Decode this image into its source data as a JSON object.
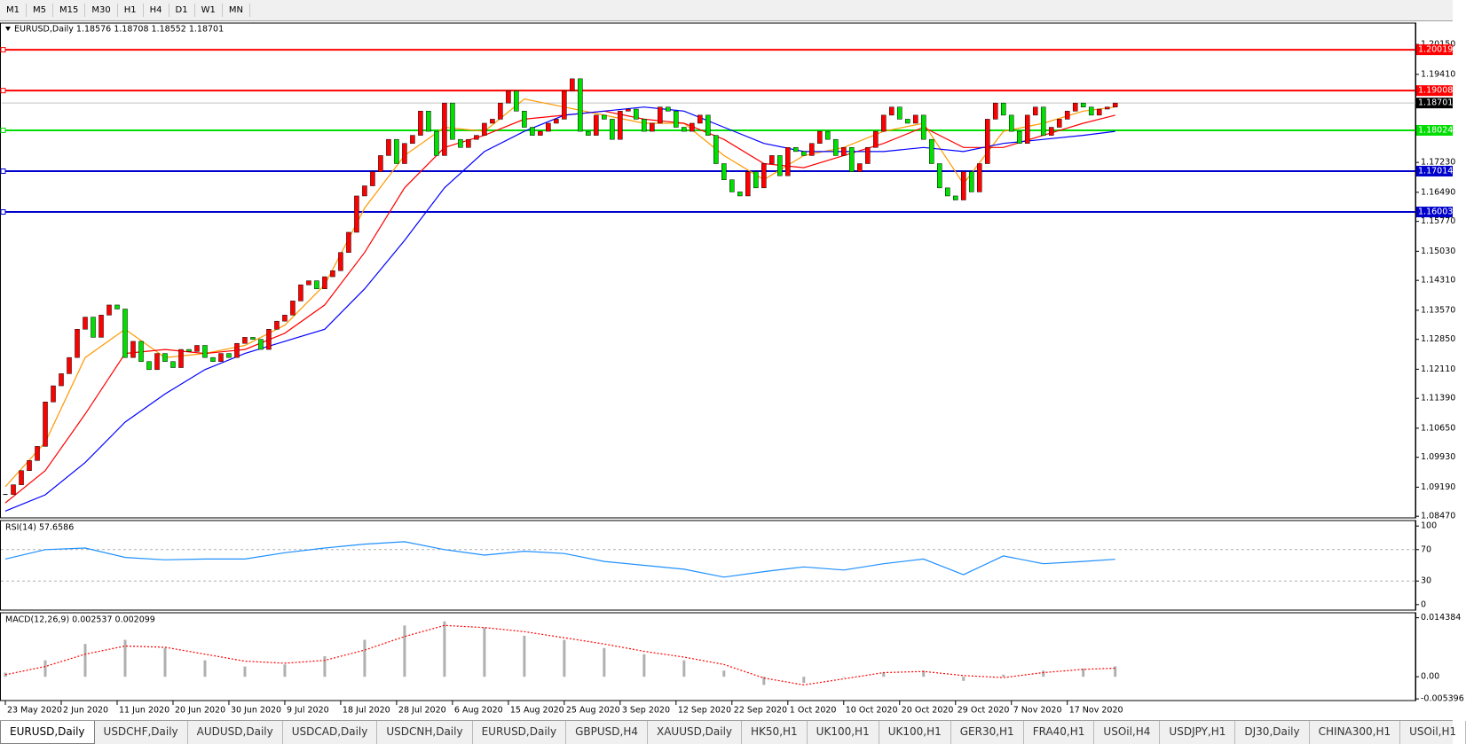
{
  "toolbar": [
    "M1",
    "M5",
    "M15",
    "M30",
    "H1",
    "H4",
    "D1",
    "W1",
    "MN"
  ],
  "chart_data": [
    {
      "type": "candlestick",
      "title": "EURUSD,Daily  1.18576 1.18708 1.18552 1.18701",
      "up_color": "#ff0000",
      "down_color": "#00e000",
      "closes": [
        1.0901,
        1.0925,
        1.096,
        1.0985,
        1.102,
        1.113,
        1.117,
        1.12,
        1.124,
        1.131,
        1.134,
        1.129,
        1.1345,
        1.137,
        1.136,
        1.124,
        1.128,
        1.123,
        1.121,
        1.125,
        1.123,
        1.1215,
        1.126,
        1.1255,
        1.127,
        1.124,
        1.123,
        1.125,
        1.124,
        1.1275,
        1.129,
        1.1285,
        1.126,
        1.131,
        1.133,
        1.1345,
        1.138,
        1.142,
        1.143,
        1.141,
        1.144,
        1.1455,
        1.15,
        1.155,
        1.164,
        1.1665,
        1.17,
        1.174,
        1.178,
        1.172,
        1.177,
        1.179,
        1.185,
        1.18,
        1.174,
        1.187,
        1.178,
        1.176,
        1.178,
        1.179,
        1.182,
        1.183,
        1.187,
        1.19,
        1.185,
        1.181,
        1.179,
        1.18,
        1.182,
        1.183,
        1.19,
        1.193,
        1.18,
        1.179,
        1.184,
        1.183,
        1.178,
        1.185,
        1.1855,
        1.183,
        1.18,
        1.182,
        1.186,
        1.185,
        1.181,
        1.18,
        1.182,
        1.184,
        1.179,
        1.172,
        1.168,
        1.165,
        1.164,
        1.17,
        1.166,
        1.172,
        1.174,
        1.169,
        1.176,
        1.175,
        1.174,
        1.177,
        1.18,
        1.178,
        1.174,
        1.176,
        1.17,
        1.172,
        1.176,
        1.18,
        1.184,
        1.186,
        1.183,
        1.182,
        1.184,
        1.178,
        1.172,
        1.166,
        1.164,
        1.163,
        1.17,
        1.165,
        1.172,
        1.183,
        1.187,
        1.184,
        1.18,
        1.177,
        1.184,
        1.186,
        1.179,
        1.181,
        1.183,
        1.185,
        1.187,
        1.186,
        1.184,
        1.1855,
        1.186,
        1.18701
      ],
      "x": [
        0,
        5,
        10,
        15,
        20,
        25,
        30,
        35,
        40,
        45,
        50,
        55,
        60,
        65,
        70,
        75,
        80,
        85,
        90,
        95,
        100,
        105,
        110,
        115,
        120,
        125,
        130,
        135,
        139
      ],
      "series": [
        {
          "color": "#ff9900",
          "values": [
            1.092,
            1.103,
            1.124,
            1.131,
            1.124,
            1.125,
            1.127,
            1.132,
            1.142,
            1.161,
            1.174,
            1.181,
            1.18,
            1.188,
            1.186,
            1.184,
            1.182,
            1.182,
            1.174,
            1.168,
            1.174,
            1.176,
            1.18,
            1.182,
            1.167,
            1.18,
            1.182,
            1.185,
            1.186
          ]
        },
        {
          "color": "#ff0000",
          "values": [
            1.088,
            1.096,
            1.11,
            1.125,
            1.126,
            1.125,
            1.126,
            1.13,
            1.137,
            1.15,
            1.166,
            1.176,
            1.179,
            1.183,
            1.184,
            1.185,
            1.183,
            1.182,
            1.178,
            1.172,
            1.171,
            1.174,
            1.177,
            1.181,
            1.176,
            1.176,
            1.179,
            1.182,
            1.184
          ]
        },
        {
          "color": "#0000ff",
          "values": [
            1.086,
            1.09,
            1.098,
            1.108,
            1.115,
            1.121,
            1.125,
            1.128,
            1.131,
            1.141,
            1.153,
            1.166,
            1.175,
            1.18,
            1.184,
            1.185,
            1.186,
            1.185,
            1.181,
            1.177,
            1.175,
            1.175,
            1.175,
            1.176,
            1.175,
            1.177,
            1.178,
            1.179,
            1.18
          ]
        }
      ],
      "levels": [
        {
          "value": 1.20019,
          "color": "#ff0000"
        },
        {
          "value": 1.19008,
          "color": "#ff0000"
        },
        {
          "value": 1.18024,
          "color": "#00dd00"
        },
        {
          "value": 1.17014,
          "color": "#0000cc"
        },
        {
          "value": 1.16003,
          "color": "#0000cc"
        }
      ],
      "price_line": 1.18701,
      "xlim": [
        -0.67,
        176.6
      ],
      "ylim": [
        1.0843,
        1.2068
      ],
      "yticks": [
        {
          "value": 1.2015,
          "label": "1.20150"
        },
        {
          "value": 1.1941,
          "label": "1.19410"
        },
        {
          "value": 1.1723,
          "label": "1.17230"
        },
        {
          "value": 1.1649,
          "label": "1.16490"
        },
        {
          "value": 1.1577,
          "label": "1.15770"
        },
        {
          "value": 1.1503,
          "label": "1.15030"
        },
        {
          "value": 1.1431,
          "label": "1.14310"
        },
        {
          "value": 1.1357,
          "label": "1.13570"
        },
        {
          "value": 1.1285,
          "label": "1.12850"
        },
        {
          "value": 1.1211,
          "label": "1.12110"
        },
        {
          "value": 1.1139,
          "label": "1.11390"
        },
        {
          "value": 1.1065,
          "label": "1.10650"
        },
        {
          "value": 1.0993,
          "label": "1.09930"
        },
        {
          "value": 1.0919,
          "label": "1.09190"
        },
        {
          "value": 1.0847,
          "label": "1.08470"
        }
      ],
      "xticks": [
        {
          "value": 0,
          "label": "23 May 2020"
        },
        {
          "value": 7,
          "label": "2 Jun 2020"
        },
        {
          "value": 14,
          "label": "11 Jun 2020"
        },
        {
          "value": 21,
          "label": "20 Jun 2020"
        },
        {
          "value": 28,
          "label": "30 Jun 2020"
        },
        {
          "value": 35,
          "label": "9 Jul 2020"
        },
        {
          "value": 42,
          "label": "18 Jul 2020"
        },
        {
          "value": 49,
          "label": "28 Jul 2020"
        },
        {
          "value": 56,
          "label": "6 Aug 2020"
        },
        {
          "value": 63,
          "label": "15 Aug 2020"
        },
        {
          "value": 70,
          "label": "25 Aug 2020"
        },
        {
          "value": 77,
          "label": "3 Sep 2020"
        },
        {
          "value": 84,
          "label": "12 Sep 2020"
        },
        {
          "value": 91,
          "label": "22 Sep 2020"
        },
        {
          "value": 98,
          "label": "1 Oct 2020"
        },
        {
          "value": 105,
          "label": "10 Oct 2020"
        },
        {
          "value": 112,
          "label": "20 Oct 2020"
        },
        {
          "value": 119,
          "label": "29 Oct 2020"
        },
        {
          "value": 126,
          "label": "7 Nov 2020"
        },
        {
          "value": 133,
          "label": "17 Nov 2020"
        }
      ]
    },
    {
      "type": "line",
      "title": "RSI(14) 57.6586",
      "x": [
        0,
        5,
        10,
        15,
        20,
        25,
        30,
        35,
        40,
        45,
        50,
        55,
        60,
        65,
        70,
        75,
        80,
        85,
        90,
        95,
        100,
        105,
        110,
        115,
        120,
        125,
        130,
        135,
        139
      ],
      "series": [
        {
          "color": "#1e90ff",
          "values": [
            58,
            70,
            72,
            60,
            57,
            58,
            58,
            66,
            72,
            77,
            80,
            70,
            63,
            68,
            65,
            55,
            50,
            45,
            35,
            42,
            48,
            44,
            52,
            58,
            38,
            62,
            52,
            55,
            57.6586
          ]
        }
      ],
      "levels": [
        70,
        30
      ],
      "xlim": [
        -0.67,
        176.6
      ],
      "ylim": [
        -7,
        107
      ],
      "yticks": [
        100,
        70,
        30,
        0
      ]
    },
    {
      "type": "bar",
      "title": "MACD(12,26,9) 0.002537 0.002099",
      "x": [
        0,
        5,
        10,
        15,
        20,
        25,
        30,
        35,
        40,
        45,
        50,
        55,
        60,
        65,
        70,
        75,
        80,
        85,
        90,
        95,
        100,
        105,
        110,
        115,
        120,
        125,
        130,
        135,
        139
      ],
      "series": [
        {
          "kind": "bar",
          "color": "#b0b0b0",
          "values": [
            0.001,
            0.004,
            0.008,
            0.009,
            0.007,
            0.004,
            0.0025,
            0.003,
            0.005,
            0.009,
            0.0125,
            0.0135,
            0.012,
            0.01,
            0.009,
            0.007,
            0.0055,
            0.004,
            0.0015,
            -0.002,
            -0.0015,
            0,
            0.001,
            0.0015,
            -0.001,
            0.0005,
            0.0015,
            0.002,
            0.002537
          ]
        },
        {
          "kind": "line",
          "color": "#ff0000",
          "values": [
            0.0005,
            0.0025,
            0.0055,
            0.0075,
            0.0072,
            0.0055,
            0.0038,
            0.0033,
            0.004,
            0.0065,
            0.0098,
            0.0125,
            0.012,
            0.011,
            0.0095,
            0.008,
            0.0062,
            0.0048,
            0.003,
            -0.0003,
            -0.002,
            -0.0005,
            0.001,
            0.0013,
            0.0003,
            -0.0002,
            0.001,
            0.0018,
            0.002099
          ]
        }
      ],
      "xlim": [
        -0.67,
        176.6
      ],
      "ylim": [
        -0.0058,
        0.0156
      ],
      "yticks": [
        0.014384,
        {
          "value": 0,
          "label": "0.00"
        },
        -0.005396
      ]
    }
  ],
  "tabs": [
    "EURUSD,Daily",
    "USDCHF,Daily",
    "AUDUSD,Daily",
    "USDCAD,Daily",
    "USDCNH,Daily",
    "EURUSD,Daily",
    "GBPUSD,H4",
    "XAUUSD,Daily",
    "HK50,H1",
    "UK100,H1",
    "UK100,H1",
    "GER30,H1",
    "FRA40,H1",
    "USOil,H4",
    "USDJPY,H1",
    "DJ30,Daily",
    "CHINA300,H1",
    "USOil,H1"
  ]
}
